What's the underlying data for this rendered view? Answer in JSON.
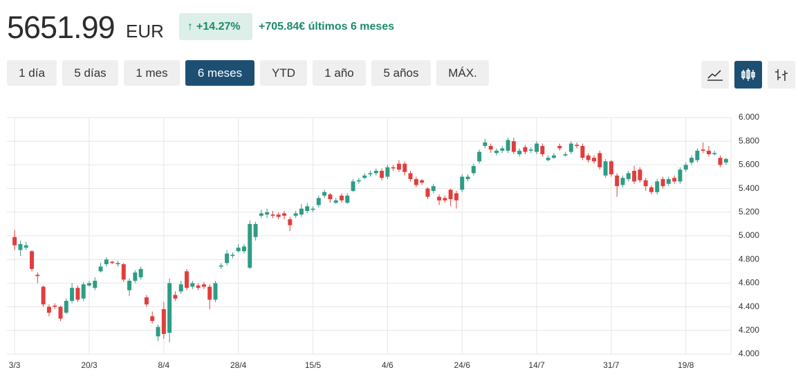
{
  "header": {
    "price": "5651.99",
    "currency": "EUR",
    "change_pct": "+14.27%",
    "change_abs": "+705.84€ últimos 6 meses"
  },
  "ranges": [
    "1 día",
    "5 días",
    "1 mes",
    "6 meses",
    "YTD",
    "1 año",
    "5 años",
    "MÁX."
  ],
  "active_range": 3,
  "chart_data": {
    "type": "candlestick",
    "categories": [
      "3/3",
      null,
      null,
      null,
      null,
      null,
      null,
      null,
      null,
      null,
      null,
      null,
      null,
      "20/3",
      null,
      null,
      null,
      null,
      null,
      null,
      null,
      null,
      null,
      null,
      null,
      null,
      "8/4",
      null,
      null,
      null,
      null,
      null,
      null,
      null,
      null,
      null,
      null,
      null,
      null,
      "28/4",
      null,
      null,
      null,
      null,
      null,
      null,
      null,
      null,
      null,
      null,
      null,
      null,
      "15/5",
      null,
      null,
      null,
      null,
      null,
      null,
      null,
      null,
      null,
      null,
      null,
      null,
      "4/6",
      null,
      null,
      null,
      null,
      null,
      null,
      null,
      null,
      null,
      null,
      null,
      null,
      "24/6",
      null,
      null,
      null,
      null,
      null,
      null,
      null,
      null,
      null,
      null,
      null,
      null,
      "14/7",
      null,
      null,
      null,
      null,
      null,
      null,
      null,
      null,
      null,
      null,
      null,
      null,
      "31/7",
      null,
      null,
      null,
      null,
      null,
      null,
      null,
      null,
      null,
      null,
      null,
      null,
      "19/8",
      null,
      null,
      null,
      null,
      null,
      null,
      null
    ],
    "open": [
      4990,
      4880,
      4900,
      4870,
      4670,
      4570,
      4400,
      4410,
      4400,
      4350,
      4450,
      4560,
      4470,
      4580,
      4560,
      4700,
      4760,
      4780,
      4760,
      4760,
      4540,
      4620,
      4650,
      4480,
      4320,
      4150,
      4380,
      4180,
      4500,
      4530,
      4700,
      4570,
      4580,
      4590,
      4570,
      4460,
      4740,
      4770,
      4830,
      4870,
      4870,
      4730,
      4990,
      5170,
      5180,
      5180,
      5180,
      5190,
      5140,
      5170,
      5180,
      5210,
      5220,
      5260,
      5340,
      5350,
      5280,
      5340,
      5280,
      5380,
      5460,
      5490,
      5520,
      5530,
      5550,
      5500,
      5580,
      5610,
      5610,
      5530,
      5480,
      5470,
      5400,
      5380,
      5330,
      5320,
      5390,
      5360,
      5390,
      5480,
      5530,
      5630,
      5760,
      5760,
      5700,
      5720,
      5720,
      5800,
      5690,
      5750,
      5720,
      5710,
      5760,
      5640,
      5660,
      5760,
      5680,
      5710,
      5770,
      5760,
      5680,
      5660,
      5700,
      5510,
      5630,
      5510,
      5430,
      5480,
      5550,
      5560,
      5470,
      5410,
      5370,
      5480,
      5440,
      5490,
      5460,
      5560,
      5620,
      5640,
      5730,
      5720,
      5690,
      5660,
      5620
    ],
    "high": [
      5050,
      4960,
      4950,
      4880,
      4690,
      4580,
      4420,
      4430,
      4410,
      4470,
      4600,
      4580,
      4610,
      4620,
      4650,
      4770,
      4820,
      4790,
      4790,
      4770,
      4640,
      4710,
      4740,
      4500,
      4360,
      4250,
      4440,
      4640,
      4530,
      4620,
      4720,
      4620,
      4600,
      4610,
      4590,
      4620,
      4770,
      4880,
      4860,
      4930,
      4930,
      5130,
      5120,
      5220,
      5230,
      5210,
      5200,
      5210,
      5160,
      5210,
      5270,
      5280,
      5250,
      5340,
      5390,
      5360,
      5320,
      5360,
      5360,
      5480,
      5490,
      5530,
      5550,
      5570,
      5570,
      5600,
      5600,
      5640,
      5630,
      5550,
      5500,
      5480,
      5410,
      5440,
      5350,
      5340,
      5400,
      5380,
      5520,
      5520,
      5610,
      5730,
      5820,
      5780,
      5740,
      5760,
      5830,
      5830,
      5740,
      5770,
      5750,
      5800,
      5780,
      5680,
      5700,
      5780,
      5710,
      5800,
      5790,
      5780,
      5700,
      5680,
      5720,
      5650,
      5640,
      5530,
      5510,
      5550,
      5590,
      5580,
      5490,
      5430,
      5480,
      5500,
      5500,
      5510,
      5580,
      5620,
      5680,
      5740,
      5790,
      5760,
      5720,
      5680,
      5660
    ],
    "low": [
      4880,
      4830,
      4880,
      4700,
      4600,
      4400,
      4320,
      4380,
      4280,
      4340,
      4430,
      4440,
      4450,
      4570,
      4540,
      4690,
      4740,
      4760,
      4740,
      4610,
      4490,
      4600,
      4630,
      4400,
      4260,
      4110,
      4130,
      4100,
      4450,
      4510,
      4540,
      4550,
      4540,
      4550,
      4380,
      4440,
      4720,
      4750,
      4810,
      4860,
      4850,
      4720,
      4960,
      5150,
      5150,
      5150,
      5140,
      5140,
      5040,
      5150,
      5160,
      5190,
      5200,
      5240,
      5320,
      5280,
      5270,
      5280,
      5270,
      5370,
      5440,
      5480,
      5500,
      5510,
      5470,
      5480,
      5550,
      5540,
      5510,
      5460,
      5410,
      5430,
      5310,
      5360,
      5260,
      5280,
      5250,
      5230,
      5370,
      5460,
      5510,
      5610,
      5740,
      5700,
      5680,
      5700,
      5700,
      5690,
      5670,
      5690,
      5700,
      5690,
      5670,
      5630,
      5650,
      5720,
      5670,
      5690,
      5740,
      5640,
      5620,
      5610,
      5560,
      5490,
      5500,
      5330,
      5410,
      5460,
      5440,
      5450,
      5380,
      5350,
      5350,
      5400,
      5420,
      5440,
      5440,
      5540,
      5600,
      5620,
      5700,
      5670,
      5680,
      5580,
      5600
    ],
    "close": [
      4920,
      4930,
      4920,
      4720,
      4660,
      4420,
      4350,
      4400,
      4300,
      4450,
      4560,
      4460,
      4590,
      4600,
      4620,
      4740,
      4800,
      4770,
      4770,
      4630,
      4620,
      4690,
      4720,
      4420,
      4280,
      4230,
      4170,
      4600,
      4470,
      4590,
      4560,
      4600,
      4560,
      4570,
      4460,
      4600,
      4750,
      4850,
      4840,
      4900,
      4910,
      5100,
      5100,
      5190,
      5200,
      5170,
      5160,
      5170,
      5090,
      5190,
      5230,
      5250,
      5230,
      5320,
      5370,
      5310,
      5300,
      5300,
      5340,
      5460,
      5470,
      5510,
      5530,
      5550,
      5490,
      5580,
      5570,
      5560,
      5540,
      5480,
      5430,
      5450,
      5330,
      5420,
      5300,
      5300,
      5310,
      5300,
      5500,
      5500,
      5590,
      5710,
      5790,
      5730,
      5720,
      5740,
      5810,
      5710,
      5720,
      5710,
      5730,
      5780,
      5690,
      5660,
      5680,
      5740,
      5690,
      5780,
      5760,
      5660,
      5640,
      5630,
      5580,
      5630,
      5520,
      5420,
      5490,
      5530,
      5460,
      5470,
      5420,
      5370,
      5460,
      5420,
      5480,
      5460,
      5560,
      5600,
      5660,
      5720,
      5720,
      5690,
      5700,
      5600,
      5650
    ],
    "up_color": "#2f9c84",
    "down_color": "#e23d3d",
    "ylim": [
      4000,
      6000
    ],
    "yticks": [
      {
        "value": 4000,
        "label": "4.000"
      },
      {
        "value": 4200,
        "label": "4.200"
      },
      {
        "value": 4400,
        "label": "4.400"
      },
      {
        "value": 4600,
        "label": "4.600"
      },
      {
        "value": 4800,
        "label": "4.800"
      },
      {
        "value": 5000,
        "label": "5.000"
      },
      {
        "value": 5200,
        "label": "5.200"
      },
      {
        "value": 5400,
        "label": "5.400"
      },
      {
        "value": 5600,
        "label": "5.600"
      },
      {
        "value": 5800,
        "label": "5.800"
      },
      {
        "value": 6000,
        "label": "6.000"
      }
    ],
    "grid": true
  }
}
